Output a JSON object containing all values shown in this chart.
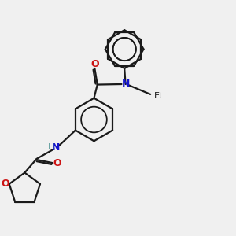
{
  "bg_color": "#f0f0f0",
  "bond_color": "#1a1a1a",
  "N_color": "#1414cc",
  "O_color": "#cc1414",
  "H_color": "#5a9a9a",
  "line_width": 1.6,
  "fig_width": 3.0,
  "fig_height": 3.0,
  "dpi": 100,
  "xlim": [
    0,
    10
  ],
  "ylim": [
    0,
    10
  ]
}
